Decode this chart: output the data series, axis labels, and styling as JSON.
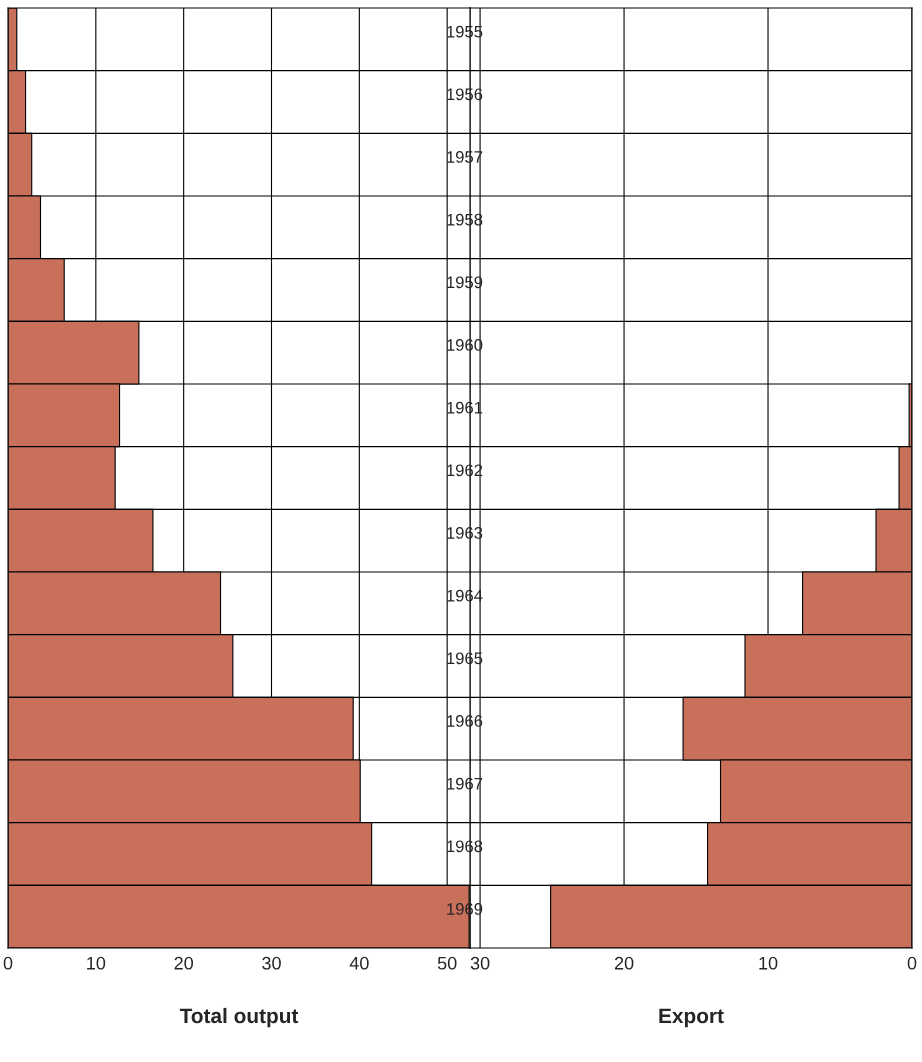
{
  "chart_data": [
    {
      "type": "bar",
      "orientation": "horizontal",
      "xlabel": "Total output",
      "categories": [
        "1955",
        "1956",
        "1957",
        "1958",
        "1959",
        "1960",
        "1961",
        "1962",
        "1963",
        "1964",
        "1965",
        "1966",
        "1967",
        "1968",
        "1969"
      ],
      "series": [
        {
          "color": "#c8705a",
          "values": [
            1.0,
            2.0,
            2.7,
            3.7,
            6.4,
            14.9,
            12.7,
            12.2,
            16.5,
            24.2,
            25.6,
            39.3,
            40.1,
            41.4,
            52.5
          ]
        }
      ],
      "xlim": [
        0,
        52.6
      ],
      "xticks": [
        0,
        10,
        20,
        30,
        40,
        50
      ],
      "grid": true
    },
    {
      "type": "bar",
      "orientation": "horizontal",
      "xlabel": "Export",
      "categories": [
        "1955",
        "1956",
        "1957",
        "1958",
        "1959",
        "1960",
        "1961",
        "1962",
        "1963",
        "1964",
        "1965",
        "1966",
        "1967",
        "1968",
        "1969"
      ],
      "series": [
        {
          "color": "#c8705a",
          "values": [
            0,
            0,
            0,
            0,
            0,
            0,
            0.2,
            0.9,
            2.5,
            7.6,
            11.6,
            15.9,
            13.3,
            14.2,
            25.1
          ]
        }
      ],
      "xlim": [
        30.7,
        0
      ],
      "xticks": [
        30,
        20,
        10,
        0
      ],
      "grid": true,
      "tick_labels": "x"
    }
  ]
}
